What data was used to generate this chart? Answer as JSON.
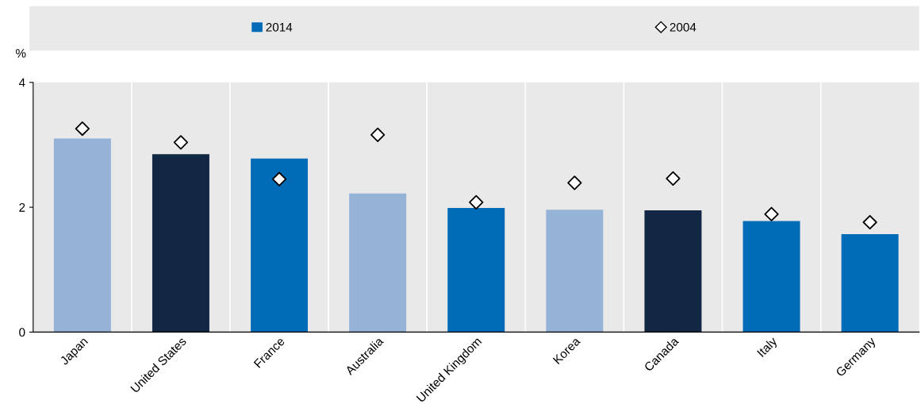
{
  "chart_data": {
    "type": "bar",
    "ylabel": "%",
    "categories": [
      "Japan",
      "United States",
      "France",
      "Australia",
      "United Kingdom",
      "Korea",
      "Canada",
      "Italy",
      "Germany"
    ],
    "series": [
      {
        "name": "2014",
        "color": "#006bb6",
        "colors": [
          "#95b3d7",
          "#122743",
          "#006bb6",
          "#95b3d7",
          "#006bb6",
          "#95b3d7",
          "#122743",
          "#006bb6",
          "#006bb6"
        ],
        "values": [
          3.1,
          2.85,
          2.78,
          2.22,
          1.99,
          1.96,
          1.95,
          1.78,
          1.57
        ]
      },
      {
        "name": "2004",
        "type": "scatter",
        "marker": "diamond",
        "color": "#ffffff",
        "values": [
          3.26,
          3.04,
          2.45,
          3.16,
          2.08,
          2.39,
          2.46,
          1.89,
          1.76
        ]
      }
    ],
    "ylim": [
      0,
      4
    ],
    "yticks": [
      0,
      2,
      4
    ],
    "grid": "x",
    "legend": "top"
  }
}
